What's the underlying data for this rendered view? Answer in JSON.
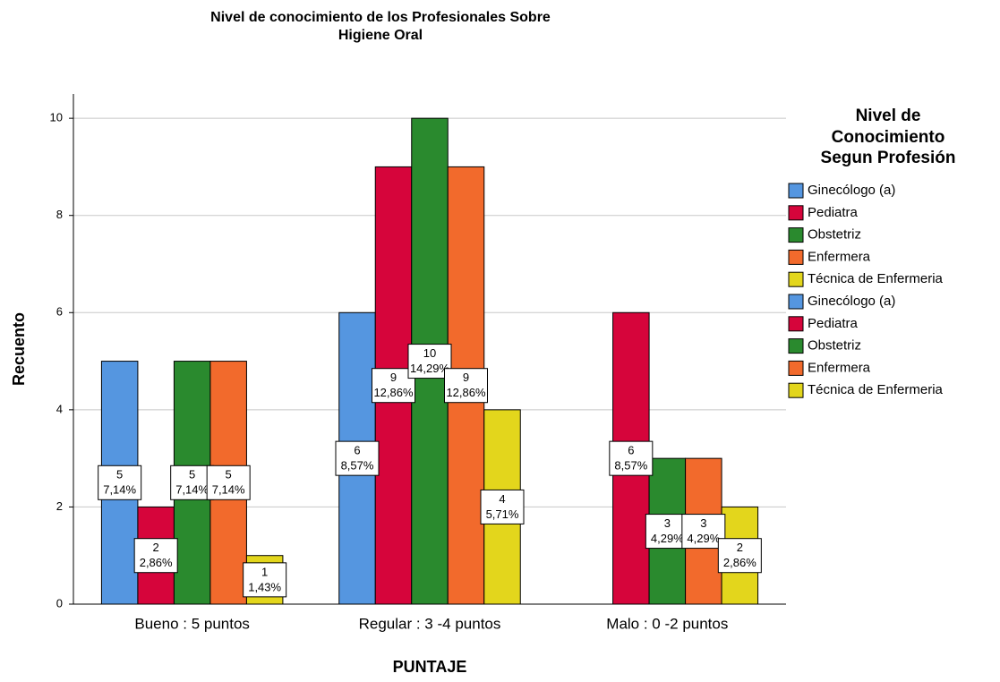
{
  "chart_data": {
    "type": "bar",
    "title": [
      "Nivel de conocimiento de los Profesionales Sobre",
      "Higiene Oral"
    ],
    "xlabel": "PUNTAJE",
    "ylabel": "Recuento",
    "legend_title": [
      "Nivel de",
      "Conocimiento",
      "Segun Profesión"
    ],
    "categories": [
      "Bueno : 5 puntos",
      "Regular : 3 -4 puntos",
      "Malo : 0 -2 puntos"
    ],
    "series": [
      {
        "name": "Ginecólogo (a)",
        "color": "#5596e0",
        "values": [
          5,
          6,
          null
        ],
        "percents": [
          7.14,
          8.57,
          null
        ],
        "percent_labels": [
          "7,14%",
          "8,57%",
          null
        ]
      },
      {
        "name": "Pediatra",
        "color": "#d6053b",
        "values": [
          2,
          9,
          6
        ],
        "percents": [
          2.86,
          12.86,
          8.57
        ],
        "percent_labels": [
          "2,86%",
          "12,86%",
          "8,57%"
        ]
      },
      {
        "name": "Obstetriz",
        "color": "#2a8a2e",
        "values": [
          5,
          10,
          3
        ],
        "percents": [
          7.14,
          14.29,
          4.29
        ],
        "percent_labels": [
          "7,14%",
          "14,29%",
          "4,29%"
        ]
      },
      {
        "name": "Enfermera",
        "color": "#f26a2c",
        "values": [
          5,
          9,
          3
        ],
        "percents": [
          7.14,
          12.86,
          4.29
        ],
        "percent_labels": [
          "7,14%",
          "12,86%",
          "4,29%"
        ]
      },
      {
        "name": "Técnica de Enfermeria",
        "color": "#e3d61c",
        "values": [
          1,
          4,
          2
        ],
        "percents": [
          1.43,
          5.71,
          2.86
        ],
        "percent_labels": [
          "1,43%",
          "5,71%",
          "2,86%"
        ]
      }
    ],
    "ylim": [
      0,
      10.5
    ],
    "yticks": [
      0,
      2,
      4,
      6,
      8,
      10
    ],
    "grid": true,
    "legend": "right"
  }
}
